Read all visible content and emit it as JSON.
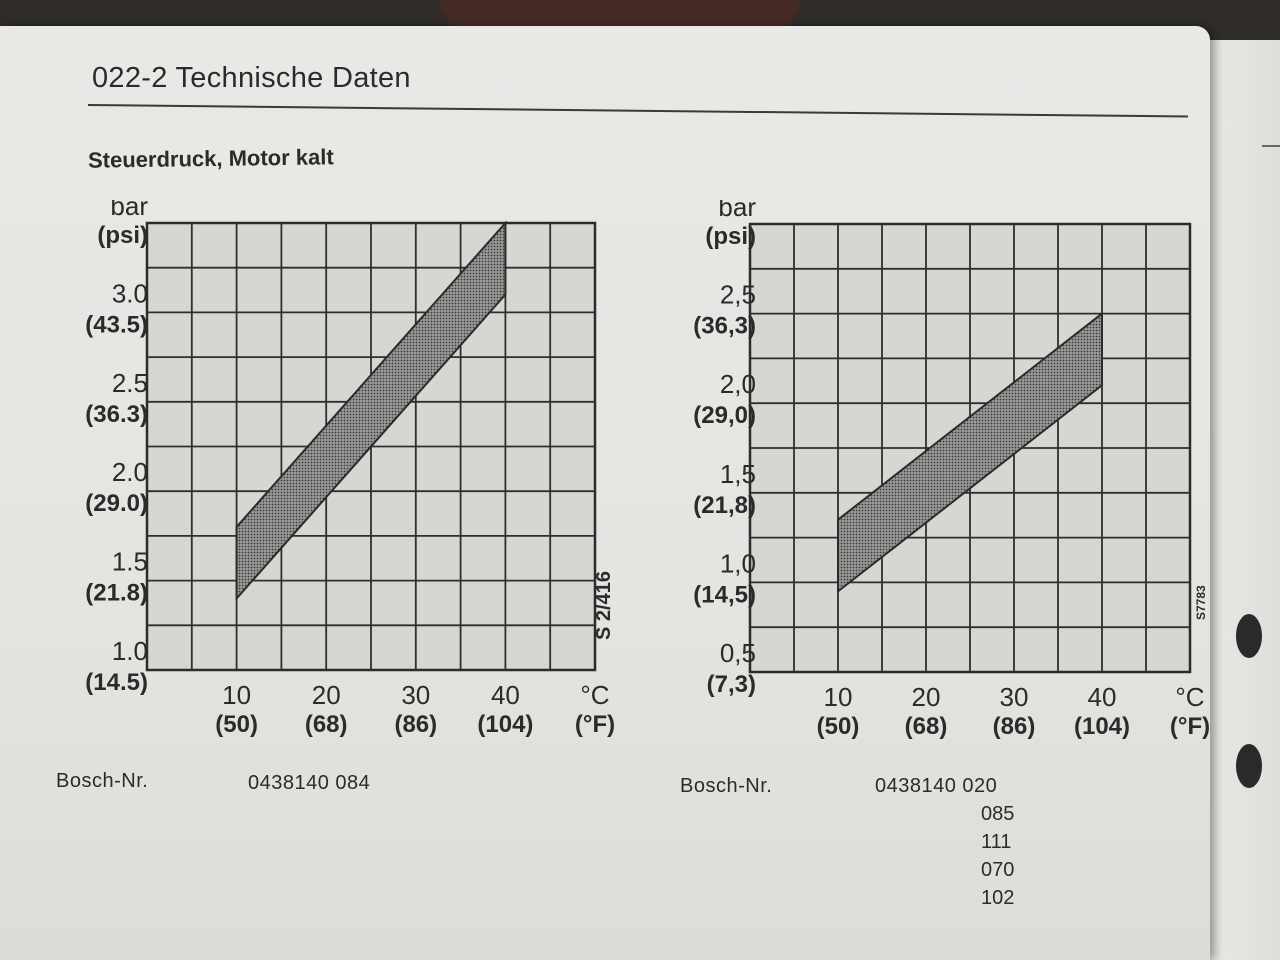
{
  "header": {
    "title": "022-2 Technische Daten"
  },
  "subtitle": "Steuerdruck, Motor kalt",
  "colors": {
    "paper": "#e6e6e3",
    "grid": "#2f2f2f",
    "band_fill": "#8c8c8c",
    "plot_bg": "#d6d6d3"
  },
  "chart_data": [
    {
      "type": "area",
      "title": "",
      "xlabel": "°C (°F)",
      "ylabel": "bar (psi)",
      "xlim": [
        0,
        50
      ],
      "ylim": [
        1.0,
        3.5
      ],
      "x_ticks": [
        {
          "value": 10,
          "label": "10",
          "sub": "(50)"
        },
        {
          "value": 20,
          "label": "20",
          "sub": "(68)"
        },
        {
          "value": 30,
          "label": "30",
          "sub": "(86)"
        },
        {
          "value": 40,
          "label": "40",
          "sub": "(104)"
        },
        {
          "value": 50,
          "label": "°C",
          "sub": "(°F)"
        }
      ],
      "y_ticks": [
        {
          "value": 1.0,
          "label": "1.0",
          "sub": "(14.5)"
        },
        {
          "value": 1.5,
          "label": "1.5",
          "sub": "(21.8)"
        },
        {
          "value": 2.0,
          "label": "2.0",
          "sub": "(29.0)"
        },
        {
          "value": 2.5,
          "label": "2.5",
          "sub": "(36.3)"
        },
        {
          "value": 3.0,
          "label": "3.0",
          "sub": "(43.5)"
        },
        {
          "value": 3.5,
          "label": "bar",
          "sub": "(psi)"
        }
      ],
      "x_grid_step": 5,
      "y_grid_step": 0.25,
      "grid": true,
      "series": [
        {
          "x": [
            10,
            40
          ],
          "upper": [
            1.8,
            3.5
          ],
          "lower": [
            1.4,
            3.1
          ]
        }
      ],
      "corner_code": "S 2/416",
      "bosch_label": "Bosch-Nr.",
      "bosch_numbers": [
        "0438140 084"
      ]
    },
    {
      "type": "area",
      "title": "",
      "xlabel": "°C (°F)",
      "ylabel": "bar (psi)",
      "xlim": [
        0,
        50
      ],
      "ylim": [
        0.5,
        3.0
      ],
      "x_ticks": [
        {
          "value": 10,
          "label": "10",
          "sub": "(50)"
        },
        {
          "value": 20,
          "label": "20",
          "sub": "(68)"
        },
        {
          "value": 30,
          "label": "30",
          "sub": "(86)"
        },
        {
          "value": 40,
          "label": "40",
          "sub": "(104)"
        },
        {
          "value": 50,
          "label": "°C",
          "sub": "(°F)"
        }
      ],
      "y_ticks": [
        {
          "value": 0.5,
          "label": "0,5",
          "sub": "(7,3)"
        },
        {
          "value": 1.0,
          "label": "1,0",
          "sub": "(14,5)"
        },
        {
          "value": 1.5,
          "label": "1,5",
          "sub": "(21,8)"
        },
        {
          "value": 2.0,
          "label": "2,0",
          "sub": "(29,0)"
        },
        {
          "value": 2.5,
          "label": "2,5",
          "sub": "(36,3)"
        },
        {
          "value": 3.0,
          "label": "bar",
          "sub": "(psi)"
        }
      ],
      "x_grid_step": 5,
      "y_grid_step": 0.25,
      "grid": true,
      "series": [
        {
          "x": [
            10,
            40
          ],
          "upper": [
            1.35,
            2.5
          ],
          "lower": [
            0.95,
            2.1
          ]
        }
      ],
      "corner_code": "S7783",
      "bosch_label": "Bosch-Nr.",
      "bosch_numbers": [
        "0438140 020",
        "085",
        "111",
        "070",
        "102"
      ]
    }
  ]
}
